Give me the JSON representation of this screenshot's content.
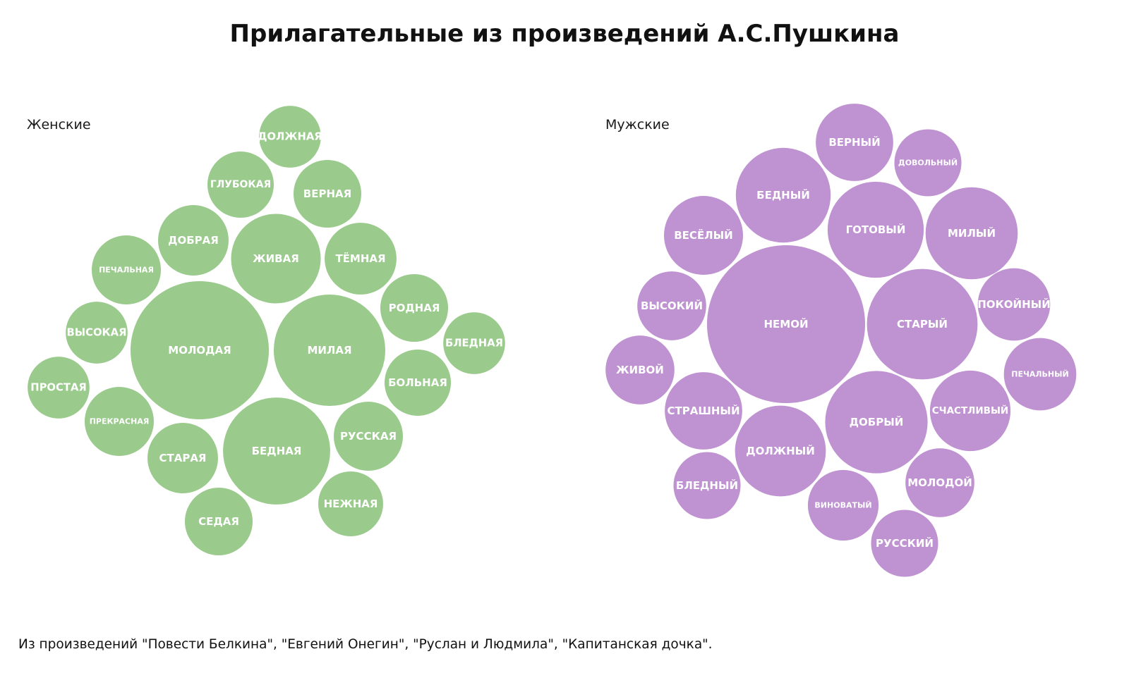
{
  "title": "Прилагательные из произведений А.С.Пушкина",
  "footnote": "Из произведений \"Повести Белкина\", \"Евгений Онегин\", \"Руслан и Людмила\", \"Капитанская дочка\".",
  "colors": {
    "women": "#9aca8c",
    "men": "#bf92d1"
  },
  "chart_data": [
    {
      "type": "bubble",
      "group_label": "Женские",
      "color": "#9aca8c",
      "legend": "none",
      "grid": false,
      "items": [
        {
          "word": "МОЛОДАЯ",
          "value": 100
        },
        {
          "word": "МИЛАЯ",
          "value": 65
        },
        {
          "word": "БЕДНАЯ",
          "value": 60
        },
        {
          "word": "ЖИВАЯ",
          "value": 42
        },
        {
          "word": "ТЁМНАЯ",
          "value": 27
        },
        {
          "word": "ДОБРАЯ",
          "value": 26
        },
        {
          "word": "СТАРАЯ",
          "value": 26
        },
        {
          "word": "РУССКАЯ",
          "value": 25
        },
        {
          "word": "ПЕЧАЛЬНАЯ",
          "value": 25
        },
        {
          "word": "ПРЕКРАСНАЯ",
          "value": 25
        },
        {
          "word": "СЕДАЯ",
          "value": 24
        },
        {
          "word": "ВЕРНАЯ",
          "value": 24
        },
        {
          "word": "РОДНАЯ",
          "value": 24
        },
        {
          "word": "БОЛЬНАЯ",
          "value": 23
        },
        {
          "word": "ГЛУБОКАЯ",
          "value": 23
        },
        {
          "word": "НЕЖНАЯ",
          "value": 22
        },
        {
          "word": "ВЫСОКАЯ",
          "value": 20
        },
        {
          "word": "ДОЛЖНАЯ",
          "value": 20
        },
        {
          "word": "БЛЕДНАЯ",
          "value": 20
        },
        {
          "word": "ПРОСТАЯ",
          "value": 20
        }
      ]
    },
    {
      "type": "bubble",
      "group_label": "Мужские",
      "color": "#bf92d1",
      "legend": "none",
      "grid": false,
      "items": [
        {
          "word": "НЕМОЙ",
          "value": 100
        },
        {
          "word": "СТАРЫЙ",
          "value": 49
        },
        {
          "word": "ДОБРЫЙ",
          "value": 42
        },
        {
          "word": "ГОТОВЫЙ",
          "value": 37
        },
        {
          "word": "БЕДНЫЙ",
          "value": 36
        },
        {
          "word": "МИЛЫЙ",
          "value": 34
        },
        {
          "word": "ДОЛЖНЫЙ",
          "value": 33
        },
        {
          "word": "ВЕСЁЛЫЙ",
          "value": 25
        },
        {
          "word": "СЧАСТЛИВЫЙ",
          "value": 26
        },
        {
          "word": "СТРАШНЫЙ",
          "value": 24
        },
        {
          "word": "ВЕРНЫЙ",
          "value": 24
        },
        {
          "word": "ПЕЧАЛЬНЫЙ",
          "value": 21
        },
        {
          "word": "ПОКОЙНЫЙ",
          "value": 21
        },
        {
          "word": "ВИНОВАТЫЙ",
          "value": 20
        },
        {
          "word": "ВЫСОКИЙ",
          "value": 19
        },
        {
          "word": "ЖИВОЙ",
          "value": 19
        },
        {
          "word": "МОЛОДОЙ",
          "value": 19
        },
        {
          "word": "ДОВОЛЬНЫЙ",
          "value": 18
        },
        {
          "word": "БЛЕДНЫЙ",
          "value": 18
        },
        {
          "word": "РУССКИЙ",
          "value": 18
        }
      ]
    }
  ]
}
